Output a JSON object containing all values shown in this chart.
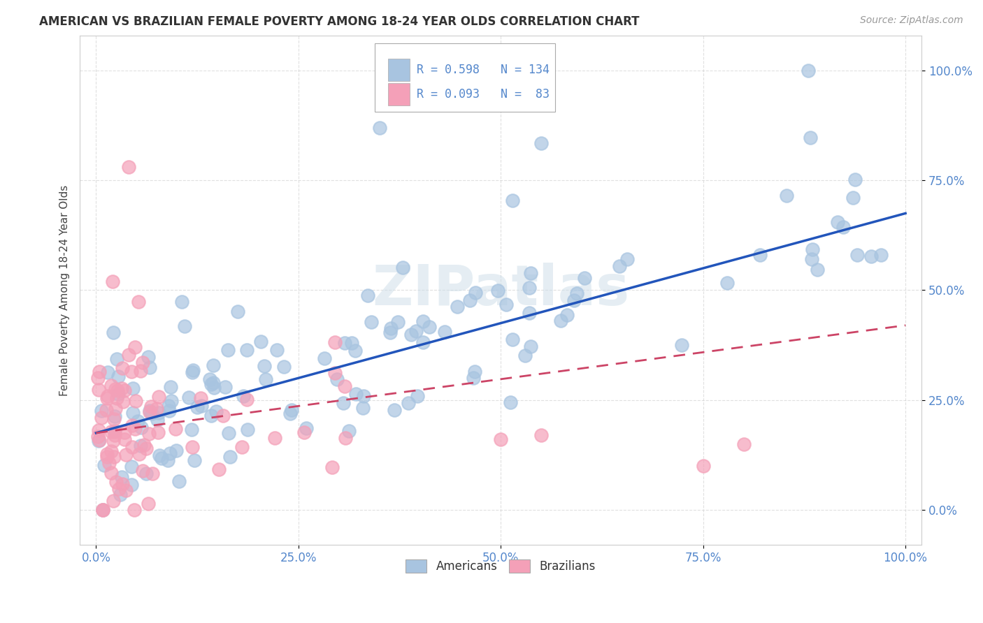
{
  "title": "AMERICAN VS BRAZILIAN FEMALE POVERTY AMONG 18-24 YEAR OLDS CORRELATION CHART",
  "source": "Source: ZipAtlas.com",
  "ylabel": "Female Poverty Among 18-24 Year Olds",
  "xlim": [
    -0.02,
    1.02
  ],
  "ylim": [
    -0.08,
    1.08
  ],
  "xticks": [
    0,
    0.25,
    0.5,
    0.75,
    1.0
  ],
  "xticklabels": [
    "0.0%",
    "25.0%",
    "50.0%",
    "75.0%",
    "100.0%"
  ],
  "yticks": [
    0,
    0.25,
    0.5,
    0.75,
    1.0
  ],
  "yticklabels": [
    "0.0%",
    "25.0%",
    "50.0%",
    "75.0%",
    "100.0%"
  ],
  "americans_color": "#a8c4e0",
  "brazilians_color": "#f4a0b8",
  "trend_american_color": "#2255bb",
  "trend_brazilian_color": "#cc4466",
  "R_american": 0.598,
  "N_american": 134,
  "R_brazilian": 0.093,
  "N_brazilian": 83,
  "background_color": "#ffffff",
  "tick_color": "#5588cc",
  "grid_color": "#cccccc",
  "trend_american_y_start": 0.175,
  "trend_american_y_end": 0.675,
  "trend_brazilian_y_start": 0.175,
  "trend_brazilian_y_end": 0.42
}
